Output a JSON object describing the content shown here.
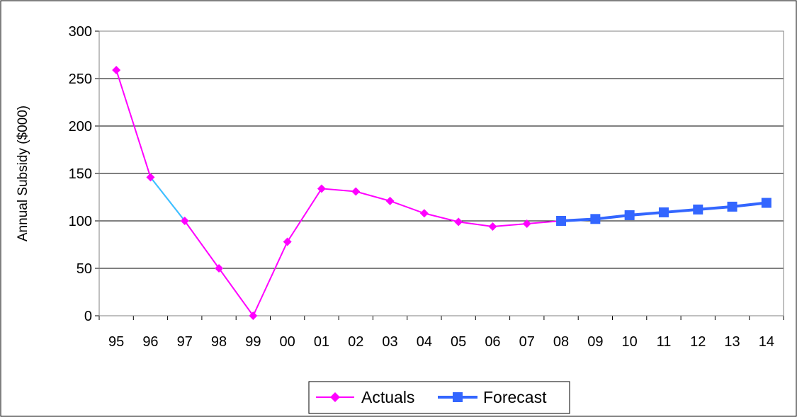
{
  "chart_data": {
    "type": "line",
    "categories": [
      "95",
      "96",
      "97",
      "98",
      "99",
      "00",
      "01",
      "02",
      "03",
      "04",
      "05",
      "06",
      "07",
      "08",
      "09",
      "10",
      "11",
      "12",
      "13",
      "14"
    ],
    "ylabel": "Annual Subsidy ($000)",
    "xlabel": "",
    "ylim": [
      0,
      300
    ],
    "yticks": [
      0,
      50,
      100,
      150,
      200,
      250,
      300
    ],
    "grid": true,
    "legend_placement": "bottom",
    "series": [
      {
        "name": "Actuals",
        "color": "#ff00ff",
        "marker": "diamond",
        "values": [
          259,
          146,
          100,
          50,
          0,
          78,
          134,
          131,
          121,
          108,
          99,
          94,
          97,
          100,
          null,
          null,
          null,
          null,
          null,
          null
        ]
      },
      {
        "name": "Forecast",
        "color": "#3366ff",
        "marker": "square",
        "values": [
          null,
          null,
          null,
          null,
          null,
          null,
          null,
          null,
          null,
          null,
          null,
          null,
          null,
          100,
          102,
          106,
          109,
          112,
          115,
          119
        ]
      }
    ],
    "segment_highlight": {
      "from": "96",
      "to": "97",
      "color": "#33ccff"
    }
  }
}
